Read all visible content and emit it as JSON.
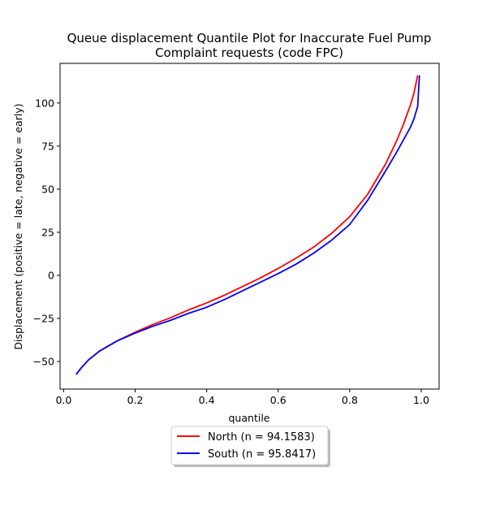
{
  "chart_data": {
    "type": "line",
    "title": [
      "Queue displacement Quantile Plot for Inaccurate Fuel Pump",
      "Complaint  requests (code FPC)"
    ],
    "xlabel": "quantile",
    "ylabel": "Displacement (positive = late, negative = early)",
    "xlim": [
      -0.01,
      1.05
    ],
    "ylim": [
      -66,
      123
    ],
    "xticks": [
      0.0,
      0.2,
      0.4,
      0.6,
      0.8,
      1.0
    ],
    "xtick_labels": [
      "0.0",
      "0.2",
      "0.4",
      "0.6",
      "0.8",
      "1.0"
    ],
    "yticks": [
      -50,
      -25,
      0,
      25,
      50,
      75,
      100
    ],
    "ytick_labels": [
      "−50",
      "−25",
      "0",
      "25",
      "50",
      "75",
      "100"
    ],
    "grid": false,
    "legend_placement": "below plot, center",
    "series": [
      {
        "name": "North (n = 94.1583)",
        "color": "#ff0000",
        "x": [
          0.035,
          0.05,
          0.07,
          0.1,
          0.15,
          0.2,
          0.25,
          0.3,
          0.35,
          0.4,
          0.45,
          0.5,
          0.55,
          0.6,
          0.65,
          0.7,
          0.75,
          0.8,
          0.85,
          0.9,
          0.93,
          0.95,
          0.97,
          0.98,
          0.99
        ],
        "y": [
          -57.5,
          -53.5,
          -49,
          -44,
          -38,
          -33,
          -28.5,
          -24.5,
          -20,
          -16,
          -11.5,
          -6.5,
          -1.5,
          4,
          10,
          16.5,
          24.5,
          34,
          47,
          64.5,
          77.5,
          87.5,
          99,
          106,
          116
        ]
      },
      {
        "name": "South (n = 95.8417)",
        "color": "#0000ff",
        "x": [
          0.035,
          0.05,
          0.07,
          0.1,
          0.15,
          0.2,
          0.25,
          0.3,
          0.35,
          0.4,
          0.45,
          0.5,
          0.55,
          0.6,
          0.65,
          0.7,
          0.75,
          0.8,
          0.85,
          0.9,
          0.93,
          0.95,
          0.97,
          0.98,
          0.99,
          0.995
        ],
        "y": [
          -57.5,
          -53.5,
          -49,
          -44,
          -38,
          -33.5,
          -29.5,
          -26,
          -22,
          -18.5,
          -14,
          -9,
          -4,
          1,
          6.5,
          13,
          20.5,
          29.5,
          43.5,
          60.5,
          71,
          78.5,
          86,
          91,
          98,
          116
        ]
      }
    ]
  }
}
